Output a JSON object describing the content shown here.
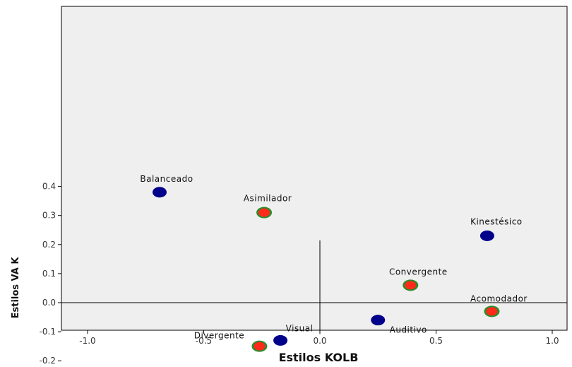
{
  "chart_data": {
    "type": "scatter",
    "xlabel": "Estilos KOLB",
    "ylabel": "Estilos VA K",
    "xlim": [
      -1.1,
      1.1
    ],
    "ylim": [
      -0.2,
      0.4
    ],
    "x_ticks": [
      -1.0,
      -0.5,
      0.0,
      0.5,
      1.0
    ],
    "x_tick_labels": [
      "-1.0",
      "-0.5",
      "0.0",
      "0.5",
      "1.0"
    ],
    "y_ticks": [
      -0.2,
      -0.1,
      0.0,
      0.1,
      0.2,
      0.3,
      0.4
    ],
    "y_tick_labels": [
      "-0.2",
      "-0.1",
      "0.0",
      "0.1",
      "0.2",
      "0.3",
      "0.4"
    ],
    "reference_lines": {
      "x": 0,
      "y": 0
    },
    "grid": false,
    "background_color": "#efefef",
    "series": [
      {
        "marker": "blue-dot",
        "color": "#00008b",
        "points": [
          {
            "label": "Balanceado",
            "x": -0.69,
            "y": 0.38
          },
          {
            "label": "Visual",
            "x": -0.17,
            "y": -0.13
          },
          {
            "label": "Auditivo",
            "x": 0.25,
            "y": -0.06
          },
          {
            "label": "Kinestésico",
            "x": 0.72,
            "y": 0.23
          }
        ]
      },
      {
        "marker": "red-dot-green-outline",
        "color": "#ff2a1a",
        "outline_color": "#2e8b2e",
        "points": [
          {
            "label": "Asimilador",
            "x": -0.24,
            "y": 0.31
          },
          {
            "label": "Divergente",
            "x": -0.26,
            "y": -0.15
          },
          {
            "label": "Convergente",
            "x": 0.39,
            "y": 0.06
          },
          {
            "label": "Acomodador",
            "x": 0.74,
            "y": -0.03
          }
        ]
      }
    ]
  }
}
